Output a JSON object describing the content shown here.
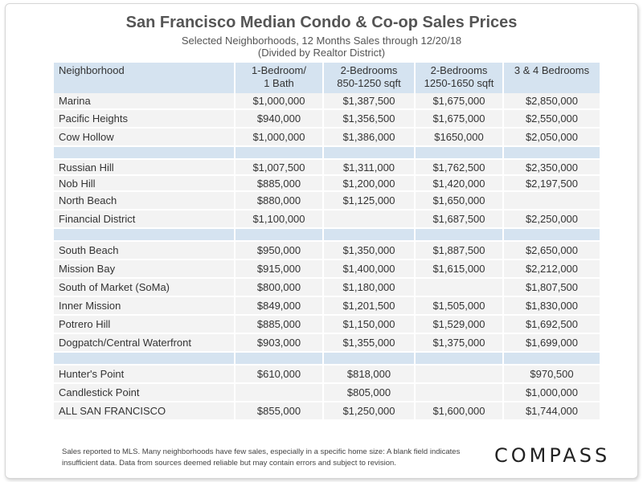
{
  "title": "San Francisco Median Condo & Co-op Sales Prices",
  "subtitle_line1": "Selected Neighborhoods, 12 Months Sales through 12/20/18",
  "subtitle_line2": "(Divided by Realtor District)",
  "footnote": "Sales reported to MLS. Many neighborhoods have few sales, especially in a specific home size: A blank field indicates insufficient data. Data from sources deemed  reliable but may contain errors and subject to revision.",
  "logo": "COMPASS",
  "colors": {
    "header_bg": "#d5e3f0",
    "row_bg": "#f3f3f3",
    "text": "#333333"
  },
  "chart_data": {
    "type": "table",
    "columns": [
      {
        "l1": "Neighborhood",
        "l2": ""
      },
      {
        "l1": "1-Bedroom/",
        "l2": "1 Bath"
      },
      {
        "l1": "2-Bedrooms",
        "l2": "850-1250 sqft"
      },
      {
        "l1": "2-Bedrooms",
        "l2": "1250-1650 sqft"
      },
      {
        "l1": "3 & 4 Bedrooms",
        "l2": ""
      }
    ],
    "groups": [
      [
        [
          "Marina",
          "$1,000,000",
          "$1,387,500",
          "$1,675,000",
          "$2,850,000"
        ],
        [
          "Pacific Heights",
          "$940,000",
          "$1,356,500",
          "$1,675,000",
          "$2,550,000"
        ],
        [
          "Cow Hollow",
          "$1,000,000",
          "$1,386,000",
          "$1650,000",
          "$2,050,000"
        ]
      ],
      [
        [
          "Russian Hill",
          "$1,007,500",
          "$1,311,000",
          "$1,762,500",
          "$2,350,000"
        ],
        [
          "Nob Hill",
          "$885,000",
          "$1,200,000",
          "$1,420,000",
          "$2,197,500"
        ],
        [
          "North Beach",
          "$880,000",
          "$1,125,000",
          "$1,650,000",
          ""
        ],
        [
          "Financial District",
          "$1,100,000",
          "",
          "$1,687,500",
          "$2,250,000"
        ]
      ],
      [
        [
          "South Beach",
          "$950,000",
          "$1,350,000",
          "$1,887,500",
          "$2,650,000"
        ],
        [
          "Mission Bay",
          "$915,000",
          "$1,400,000",
          "$1,615,000",
          "$2,212,000"
        ],
        [
          "South of Market (SoMa)",
          "$800,000",
          "$1,180,000",
          "",
          "$1,807,500"
        ],
        [
          "Inner Mission",
          "$849,000",
          "$1,201,500",
          "$1,505,000",
          "$1,830,000"
        ],
        [
          "Potrero Hill",
          "$885,000",
          "$1,150,000",
          "$1,529,000",
          "$1,692,500"
        ],
        [
          "Dogpatch/Central Waterfront",
          "$903,000",
          "$1,355,000",
          "$1,375,000",
          "$1,699,000"
        ]
      ],
      [
        [
          "Hunter's Point",
          "$610,000",
          "$818,000",
          "",
          "$970,500"
        ],
        [
          "Candlestick Point",
          "",
          "$805,000",
          "",
          "$1,000,000"
        ],
        [
          "ALL SAN FRANCISCO",
          "$855,000",
          "$1,250,000",
          "$1,600,000",
          "$1,744,000"
        ]
      ]
    ]
  }
}
